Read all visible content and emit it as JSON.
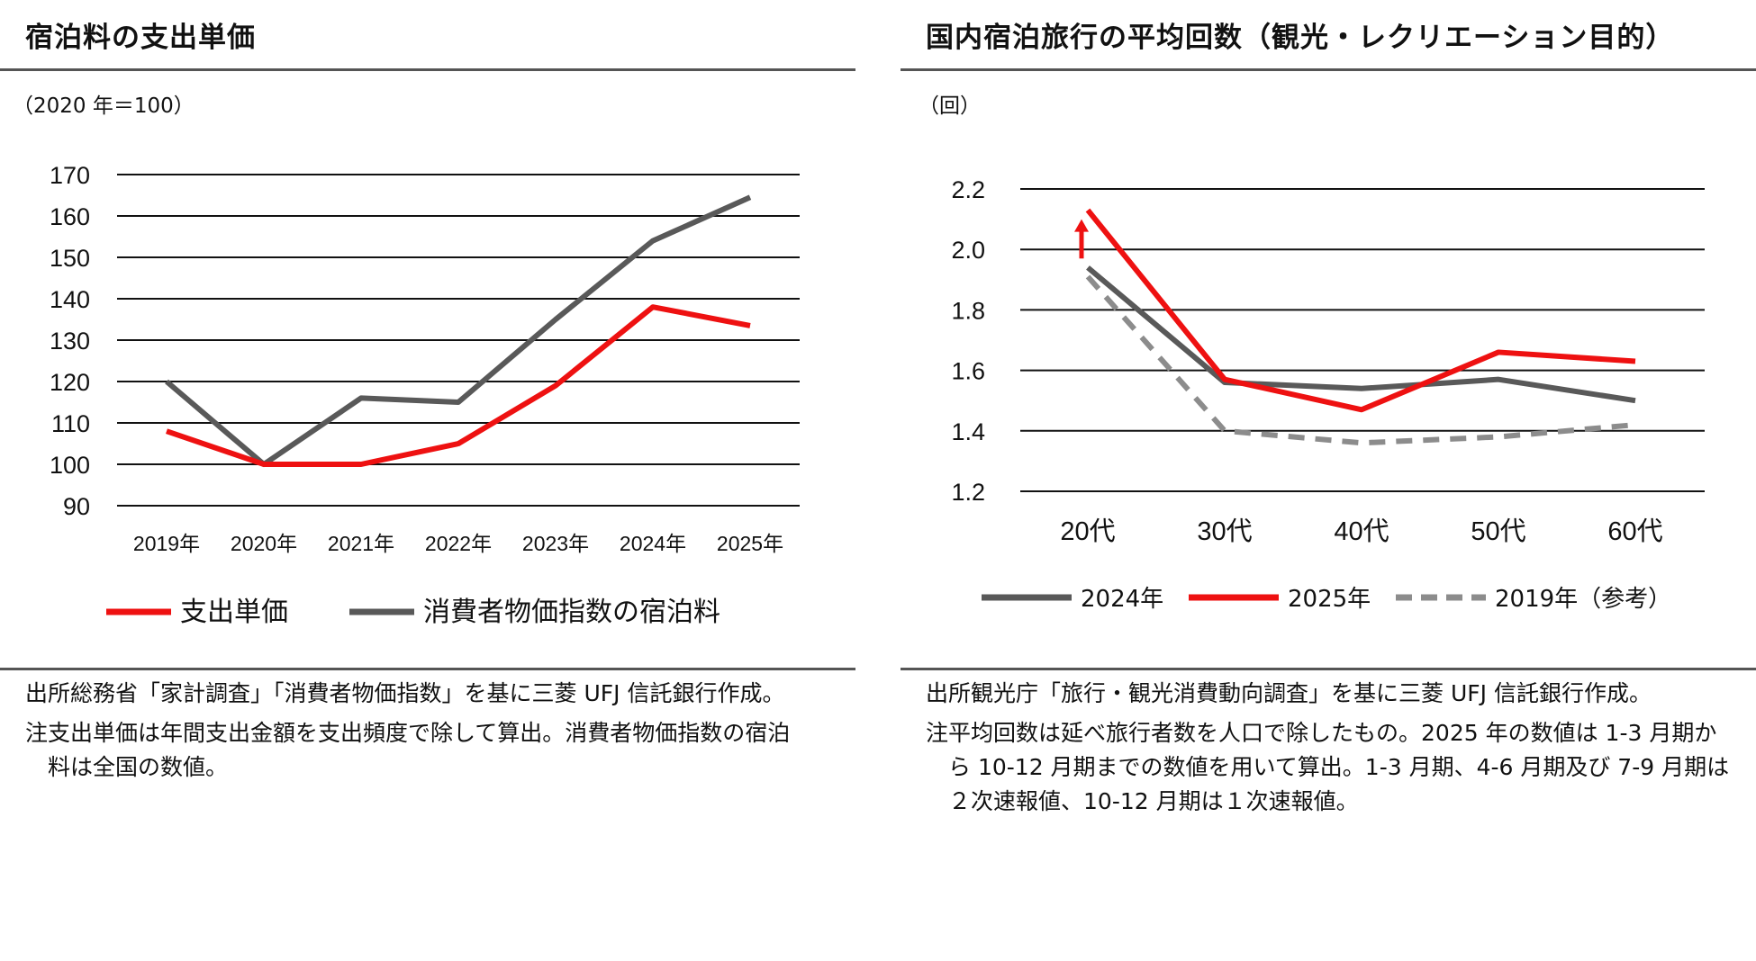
{
  "left": {
    "title": "宿泊料の支出単価",
    "unit": "（2020 年＝100）",
    "notes": [
      {
        "label": "出所 ",
        "text": "総務省「家計調査」「消費者物価指数」を基に三菱 UFJ 信託銀行作成。"
      },
      {
        "label": "注 ",
        "text": "支出単価は年間支出金額を支出頻度で除して算出。消費者物価指数の宿泊料は全国の数値。"
      }
    ]
  },
  "right": {
    "title": "国内宿泊旅行の平均回数（観光・レクリエーション目的）",
    "unit": "（回）",
    "notes": [
      {
        "label": "出所 ",
        "text": "観光庁「旅行・観光消費動向調査」を基に三菱 UFJ 信託銀行作成。"
      },
      {
        "label": "注 ",
        "text": "平均回数は延べ旅行者数を人口で除したもの。2025 年の数値は 1-3 月期から 10-12 月期までの数値を用いて算出。1-3 月期、4-6 月期及び 7-9 月期は２次速報値、10-12 月期は１次速報値。"
      }
    ]
  },
  "chart_data": [
    {
      "type": "line",
      "title": "宿泊料の支出単価",
      "ylabel": "（2020 年＝100）",
      "categories": [
        "2019年",
        "2020年",
        "2021年",
        "2022年",
        "2023年",
        "2024年",
        "2025年"
      ],
      "ylim": [
        90,
        170
      ],
      "yticks": [
        90,
        100,
        110,
        120,
        130,
        140,
        150,
        160,
        170
      ],
      "grid": true,
      "legend": "bottom",
      "series": [
        {
          "name": "支出単価",
          "color": "#ee1111",
          "dashed": false,
          "values": [
            108,
            100,
            100,
            105,
            119,
            138,
            133.5
          ]
        },
        {
          "name": "消費者物価指数の宿泊料",
          "color": "#595959",
          "dashed": false,
          "values": [
            120,
            100,
            116,
            115,
            135,
            154,
            164.5
          ]
        }
      ]
    },
    {
      "type": "line",
      "title": "国内宿泊旅行の平均回数（観光・レクリエーション目的）",
      "ylabel": "（回）",
      "categories": [
        "20代",
        "30代",
        "40代",
        "50代",
        "60代"
      ],
      "ylim": [
        1.2,
        2.2
      ],
      "yticks": [
        "1.2",
        "1.4",
        "1.6",
        "1.8",
        "2.0",
        "2.2"
      ],
      "grid": true,
      "legend": "bottom",
      "annotation": "upward-arrow at 20代",
      "series": [
        {
          "name": "2024年",
          "color": "#595959",
          "dashed": false,
          "values": [
            1.94,
            1.56,
            1.54,
            1.57,
            1.5
          ]
        },
        {
          "name": "2025年",
          "color": "#ee1111",
          "dashed": false,
          "values": [
            2.13,
            1.57,
            1.47,
            1.66,
            1.63
          ]
        },
        {
          "name": "2019年（参考）",
          "color": "#8c8c8c",
          "dashed": true,
          "values": [
            1.91,
            1.4,
            1.36,
            1.38,
            1.42
          ]
        }
      ]
    }
  ]
}
